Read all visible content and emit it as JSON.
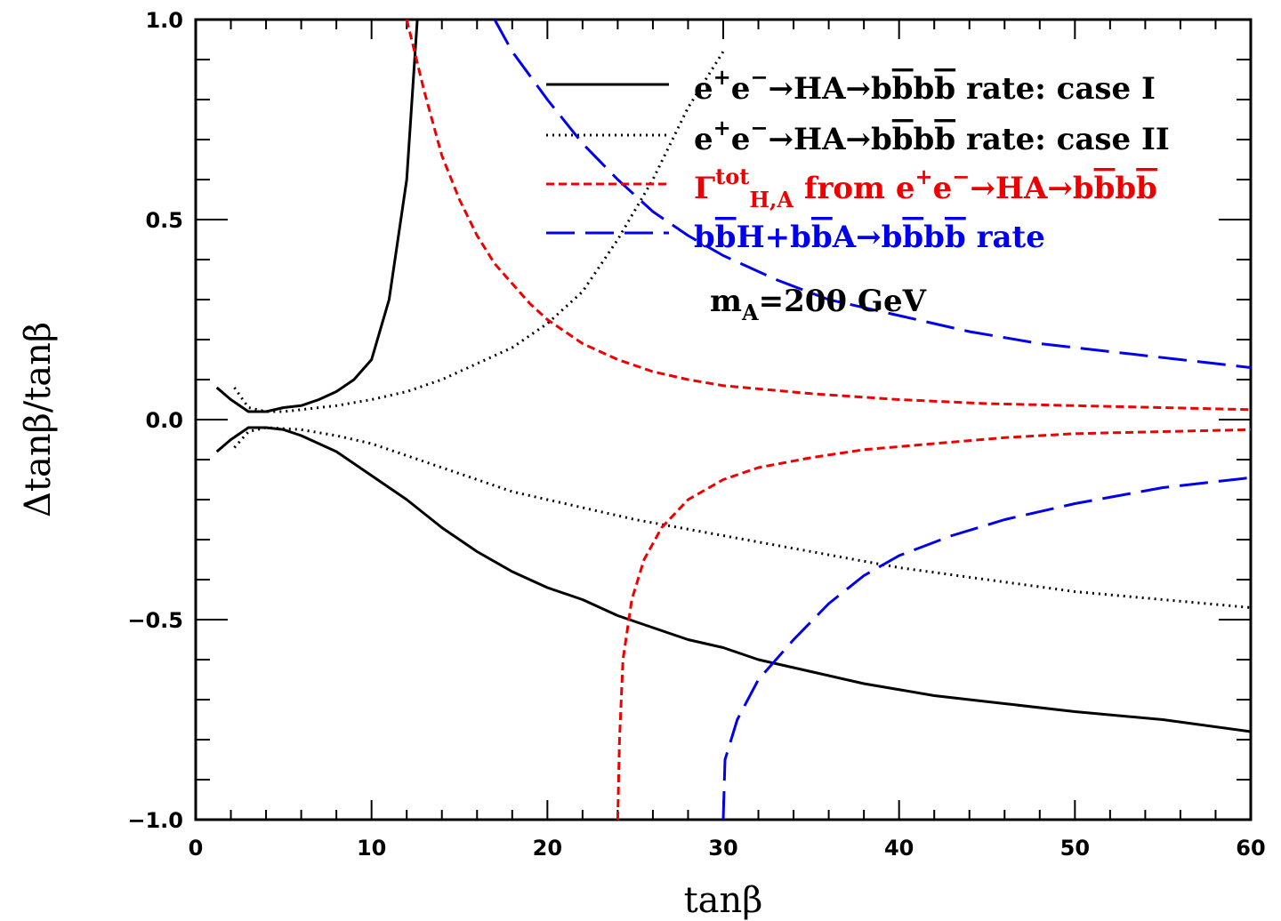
{
  "chart_data": {
    "type": "line",
    "xlabel": "tanβ",
    "ylabel": "Δtanβ/tanβ",
    "xlim": [
      0,
      60
    ],
    "ylim": [
      -1.0,
      1.0
    ],
    "x_ticks": [
      "0",
      "10",
      "20",
      "30",
      "40",
      "50",
      "60"
    ],
    "y_ticks": [
      "−1.0",
      "−0.5",
      "0.0",
      "0.5",
      "1.0"
    ],
    "annotation": {
      "text": "m_A=200 GeV",
      "color": "#00ee00"
    },
    "legend_position": "top-right",
    "series": [
      {
        "name": "e+e−→HA→bb̄bb̄ rate: case I",
        "legend": {
          "parts": [
            [
              "e",
              ""
            ],
            [
              "+",
              "sup"
            ],
            [
              "e",
              ""
            ],
            [
              "−",
              "sup"
            ],
            [
              "→HA→b",
              ""
            ],
            [
              "b",
              "bar"
            ],
            [
              "b",
              ""
            ],
            [
              "b",
              "bar"
            ],
            [
              "  rate: case I",
              ""
            ]
          ]
        },
        "color": "#000000",
        "dash": "",
        "upper": [
          [
            1.2,
            0.08
          ],
          [
            2,
            0.05
          ],
          [
            3,
            0.02
          ],
          [
            4,
            0.02
          ],
          [
            5,
            0.03
          ],
          [
            6,
            0.035
          ],
          [
            7,
            0.05
          ],
          [
            8,
            0.07
          ],
          [
            9,
            0.1
          ],
          [
            10,
            0.15
          ],
          [
            11,
            0.3
          ],
          [
            12,
            0.6
          ],
          [
            12.6,
            1.0
          ]
        ],
        "lower": [
          [
            1.2,
            -0.08
          ],
          [
            2,
            -0.05
          ],
          [
            3,
            -0.02
          ],
          [
            4,
            -0.02
          ],
          [
            5,
            -0.025
          ],
          [
            6,
            -0.04
          ],
          [
            8,
            -0.08
          ],
          [
            10,
            -0.14
          ],
          [
            12,
            -0.2
          ],
          [
            14,
            -0.27
          ],
          [
            16,
            -0.33
          ],
          [
            18,
            -0.38
          ],
          [
            20,
            -0.42
          ],
          [
            22,
            -0.45
          ],
          [
            24,
            -0.49
          ],
          [
            26,
            -0.52
          ],
          [
            28,
            -0.55
          ],
          [
            30,
            -0.57
          ],
          [
            32,
            -0.6
          ],
          [
            35,
            -0.63
          ],
          [
            38,
            -0.66
          ],
          [
            42,
            -0.69
          ],
          [
            46,
            -0.71
          ],
          [
            50,
            -0.73
          ],
          [
            55,
            -0.75
          ],
          [
            60,
            -0.78
          ]
        ]
      },
      {
        "name": "e+e−→HA→bb̄bb̄ rate: case II",
        "legend": {
          "parts": [
            [
              "e",
              ""
            ],
            [
              "+",
              "sup"
            ],
            [
              "e",
              ""
            ],
            [
              "−",
              "sup"
            ],
            [
              "→HA→b",
              ""
            ],
            [
              "b",
              "bar"
            ],
            [
              "b",
              ""
            ],
            [
              "b",
              "bar"
            ],
            [
              "  rate: case II",
              ""
            ]
          ]
        },
        "color": "#000000",
        "dash": "2,5",
        "upper": [
          [
            2.2,
            0.08
          ],
          [
            3,
            0.03
          ],
          [
            4,
            0.02
          ],
          [
            5,
            0.02
          ],
          [
            6,
            0.025
          ],
          [
            8,
            0.035
          ],
          [
            10,
            0.05
          ],
          [
            12,
            0.07
          ],
          [
            14,
            0.1
          ],
          [
            16,
            0.14
          ],
          [
            18,
            0.18
          ],
          [
            20,
            0.24
          ],
          [
            22,
            0.32
          ],
          [
            24,
            0.45
          ],
          [
            26,
            0.6
          ],
          [
            28,
            0.78
          ],
          [
            30,
            0.92
          ]
        ],
        "lower": [
          [
            2.2,
            -0.07
          ],
          [
            3,
            -0.03
          ],
          [
            4,
            -0.02
          ],
          [
            6,
            -0.025
          ],
          [
            8,
            -0.04
          ],
          [
            10,
            -0.06
          ],
          [
            12,
            -0.09
          ],
          [
            14,
            -0.12
          ],
          [
            16,
            -0.15
          ],
          [
            18,
            -0.18
          ],
          [
            20,
            -0.2
          ],
          [
            25,
            -0.25
          ],
          [
            30,
            -0.29
          ],
          [
            35,
            -0.33
          ],
          [
            40,
            -0.37
          ],
          [
            45,
            -0.4
          ],
          [
            50,
            -0.43
          ],
          [
            55,
            -0.45
          ],
          [
            60,
            -0.47
          ]
        ]
      },
      {
        "name": "Γtot H,A from e+e−→HA→bb̄bb̄",
        "legend": {
          "parts": [
            [
              "Γ",
              ""
            ],
            [
              "tot",
              "sup"
            ],
            [
              "H,A",
              "sub"
            ],
            [
              "  from  e",
              ""
            ],
            [
              "+",
              "sup"
            ],
            [
              "e",
              ""
            ],
            [
              "−",
              "sup"
            ],
            [
              "→HA→b",
              ""
            ],
            [
              "b",
              "bar"
            ],
            [
              "b",
              ""
            ],
            [
              "b",
              "bar"
            ]
          ]
        },
        "color": "#ee0000",
        "dash": "9,5",
        "upper": [
          [
            12,
            1.0
          ],
          [
            13,
            0.82
          ],
          [
            14,
            0.66
          ],
          [
            15,
            0.55
          ],
          [
            16,
            0.46
          ],
          [
            17,
            0.39
          ],
          [
            18,
            0.34
          ],
          [
            19,
            0.29
          ],
          [
            20,
            0.25
          ],
          [
            22,
            0.19
          ],
          [
            24,
            0.15
          ],
          [
            26,
            0.12
          ],
          [
            28,
            0.1
          ],
          [
            30,
            0.085
          ],
          [
            35,
            0.065
          ],
          [
            40,
            0.05
          ],
          [
            45,
            0.04
          ],
          [
            50,
            0.035
          ],
          [
            55,
            0.03
          ],
          [
            60,
            0.025
          ]
        ],
        "lower": [
          [
            24,
            -1.0
          ],
          [
            24.1,
            -0.8
          ],
          [
            24.3,
            -0.6
          ],
          [
            24.8,
            -0.45
          ],
          [
            25.5,
            -0.35
          ],
          [
            26.5,
            -0.27
          ],
          [
            28,
            -0.2
          ],
          [
            30,
            -0.15
          ],
          [
            32,
            -0.12
          ],
          [
            35,
            -0.095
          ],
          [
            38,
            -0.075
          ],
          [
            42,
            -0.06
          ],
          [
            46,
            -0.045
          ],
          [
            50,
            -0.035
          ],
          [
            55,
            -0.03
          ],
          [
            60,
            -0.025
          ]
        ]
      },
      {
        "name": "bb̄H+bb̄A→bb̄bb̄ rate",
        "legend": {
          "parts": [
            [
              "b",
              ""
            ],
            [
              "b",
              "bar"
            ],
            [
              "H+b",
              ""
            ],
            [
              "b",
              "bar"
            ],
            [
              "A→b",
              ""
            ],
            [
              "b",
              "bar"
            ],
            [
              "b",
              ""
            ],
            [
              "b",
              "bar"
            ],
            [
              "  rate",
              ""
            ]
          ]
        },
        "color": "#0000ee",
        "dash": "32,12",
        "upper": [
          [
            17,
            1.0
          ],
          [
            18,
            0.92
          ],
          [
            20,
            0.8
          ],
          [
            22,
            0.69
          ],
          [
            24,
            0.6
          ],
          [
            26,
            0.52
          ],
          [
            28,
            0.46
          ],
          [
            30,
            0.41
          ],
          [
            33,
            0.35
          ],
          [
            36,
            0.3
          ],
          [
            40,
            0.26
          ],
          [
            44,
            0.22
          ],
          [
            48,
            0.19
          ],
          [
            52,
            0.17
          ],
          [
            56,
            0.15
          ],
          [
            60,
            0.13
          ]
        ],
        "lower": [
          [
            30,
            -1.0
          ],
          [
            30.1,
            -0.85
          ],
          [
            30.8,
            -0.75
          ],
          [
            32,
            -0.65
          ],
          [
            34,
            -0.55
          ],
          [
            36,
            -0.46
          ],
          [
            38,
            -0.39
          ],
          [
            40,
            -0.34
          ],
          [
            43,
            -0.29
          ],
          [
            46,
            -0.25
          ],
          [
            50,
            -0.21
          ],
          [
            55,
            -0.17
          ],
          [
            60,
            -0.145
          ]
        ]
      }
    ]
  }
}
